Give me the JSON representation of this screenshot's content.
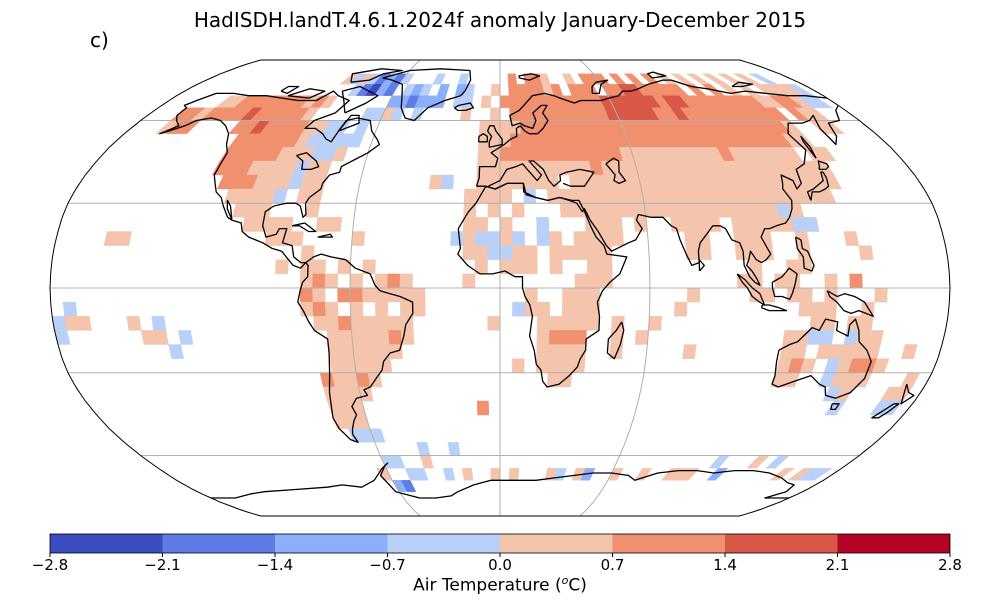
{
  "title": "HadISDH.landT.4.6.1.2024f anomaly January-December 2015",
  "panel_label": "c)",
  "colorbar": {
    "label_prefix": "Air Temperature (",
    "label_sup": "o",
    "label_suffix": "C)",
    "ticks": [
      "−2.8",
      "−2.1",
      "−1.4",
      "−0.7",
      "0.0",
      "0.7",
      "1.4",
      "2.1",
      "2.8"
    ],
    "bins": [
      {
        "from": -2.8,
        "to": -2.1,
        "color": "#3b4cc0"
      },
      {
        "from": -2.1,
        "to": -1.4,
        "color": "#5d7ce6"
      },
      {
        "from": -1.4,
        "to": -0.7,
        "color": "#8caff9"
      },
      {
        "from": -0.7,
        "to": 0.0,
        "color": "#b9d0f9"
      },
      {
        "from": 0.0,
        "to": 0.7,
        "color": "#f5c4ac"
      },
      {
        "from": 0.7,
        "to": 1.4,
        "color": "#f0906f"
      },
      {
        "from": 1.4,
        "to": 2.1,
        "color": "#d95847"
      },
      {
        "from": 2.1,
        "to": 2.8,
        "color": "#b40426"
      }
    ]
  },
  "map": {
    "projection": "Robinson",
    "gridlines": true,
    "coastlines": true
  }
}
